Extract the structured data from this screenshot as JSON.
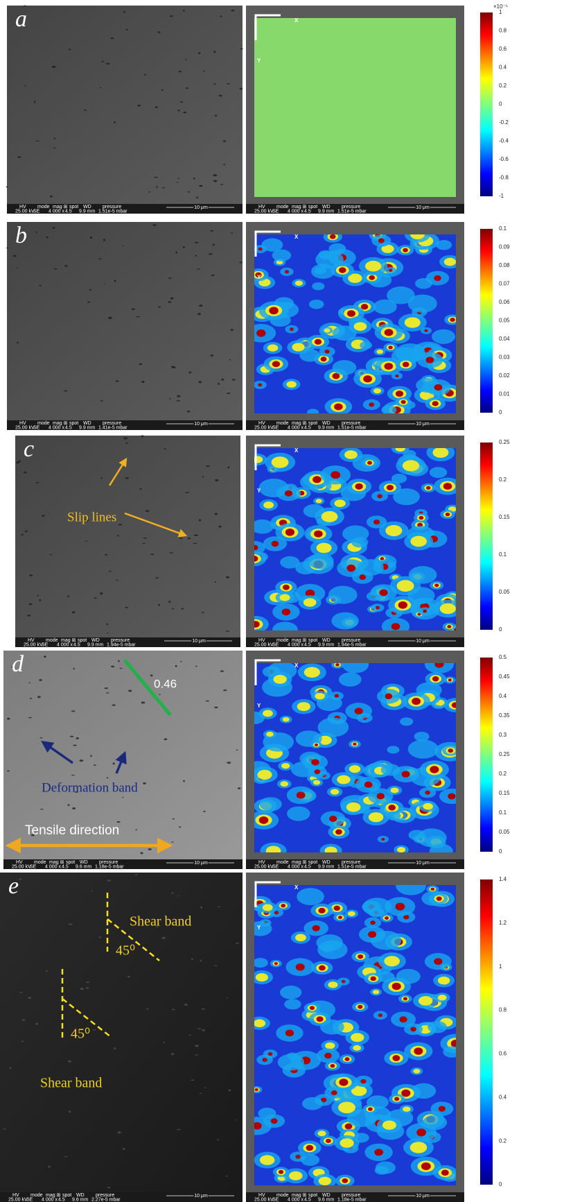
{
  "info_headers": [
    "HV",
    "mode",
    "mag ⊞",
    "spot",
    "WD",
    "pressure"
  ],
  "scale_bar": "10 μm",
  "axes": {
    "x": "X",
    "y": "Y"
  },
  "panels": [
    {
      "label": "a",
      "left_info": [
        "25.00 kV",
        "SE",
        "4 000 x",
        "4.5",
        "9.9 mm",
        "1.51e-5 mbar"
      ],
      "right_info": [
        "25.00 kV",
        "SE",
        "4 000 x",
        "4.5",
        "9.9 mm",
        "1.51e-5 mbar"
      ],
      "colorbar": {
        "exponent": "×10⁻⁵",
        "ticks": [
          "1",
          "0.8",
          "0.6",
          "0.4",
          "0.2",
          "0",
          "-0.2",
          "-0.4",
          "-0.6",
          "-0.8",
          "-1"
        ]
      },
      "annotations": []
    },
    {
      "label": "b",
      "left_info": [
        "25.00 kV",
        "SE",
        "4 000 x",
        "4.5",
        "9.9 mm",
        "1.41e-5 mbar"
      ],
      "right_info": [
        "25.00 kV",
        "SE",
        "4 000 x",
        "4.5",
        "9.9 mm",
        "1.51e-5 mbar"
      ],
      "colorbar": {
        "ticks": [
          "0.1",
          "0.09",
          "0.08",
          "0.07",
          "0.06",
          "0.05",
          "0.04",
          "0.03",
          "0.02",
          "0.01",
          "0"
        ]
      },
      "annotations": []
    },
    {
      "label": "c",
      "left_info": [
        "25.00 kV",
        "SE",
        "4 000 x",
        "4.5",
        "9.9 mm",
        "1.94e-5 mbar"
      ],
      "right_info": [
        "25.00 kV",
        "SE",
        "4 000 x",
        "4.5",
        "9.9 mm",
        "1.94e-5 mbar"
      ],
      "colorbar": {
        "ticks": [
          "0.25",
          "0.2",
          "0.15",
          "0.1",
          "0.05",
          "0"
        ]
      },
      "annotations": [
        "Slip lines"
      ]
    },
    {
      "label": "d",
      "left_info": [
        "25.00 kV",
        "SE",
        "4 000 x",
        "4.5",
        "9.6 mm",
        "1.18e-5 mbar"
      ],
      "right_info": [
        "25.00 kV",
        "SE",
        "4 000 x",
        "4.5",
        "9.9 mm",
        "1.51e-5 mbar"
      ],
      "colorbar": {
        "ticks": [
          "0.5",
          "0.45",
          "0.4",
          "0.35",
          "0.3",
          "0.25",
          "0.2",
          "0.15",
          "0.1",
          "0.05",
          "0"
        ]
      },
      "annotations": [
        "0.46",
        "Deformation band",
        "Tensile direction"
      ]
    },
    {
      "label": "e",
      "left_info": [
        "25.00 kV",
        "SE",
        "4 000 x",
        "4.5",
        "9.6 mm",
        "2.27e-5 mbar"
      ],
      "right_info": [
        "25.00 kV",
        "SE",
        "4 000 x",
        "4.5",
        "9.6 mm",
        "1.18e-5 mbar"
      ],
      "colorbar": {
        "ticks": [
          "1.4",
          "1.2",
          "1",
          "0.8",
          "0.6",
          "0.4",
          "0.2",
          "0"
        ]
      },
      "annotations": [
        "Shear band",
        "45⁰",
        "45⁰",
        "Shear band"
      ]
    }
  ]
}
